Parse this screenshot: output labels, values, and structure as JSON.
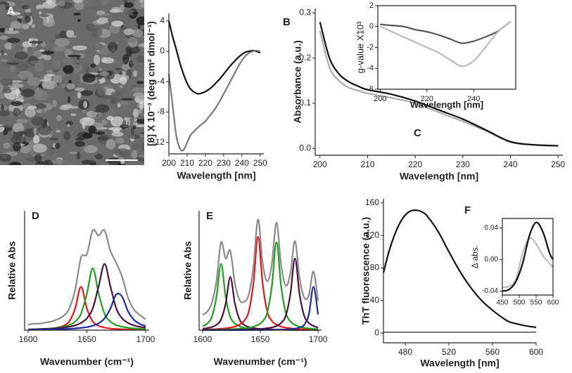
{
  "image_panel": {
    "label": "A"
  },
  "chart_data": [
    {
      "type": "line",
      "label": "B",
      "xlabel": "Wavelength [nm]",
      "ylabel": "[θ] X 10⁻³ (deg cm² dmol⁻¹)",
      "xlim": [
        200,
        252
      ],
      "ylim": [
        -13.5,
        5
      ],
      "xticks": [
        200,
        210,
        220,
        230,
        240,
        250
      ],
      "yticks": [
        4,
        0,
        -4,
        -8,
        -12
      ],
      "x": [
        200,
        202,
        204,
        206,
        208,
        210,
        212,
        214,
        216,
        218,
        220,
        222,
        224,
        226,
        228,
        230,
        232,
        234,
        236,
        238,
        240,
        242,
        244,
        246,
        248,
        250
      ],
      "series": [
        {
          "color": "#111111",
          "values": [
            4,
            2,
            0.3,
            -1.5,
            -3,
            -4.2,
            -5,
            -5.4,
            -5.6,
            -5.5,
            -5.3,
            -5,
            -4.6,
            -4.1,
            -3.6,
            -3,
            -2.4,
            -1.8,
            -1.3,
            -0.8,
            -0.4,
            -0.1,
            0,
            0.1,
            0,
            -0.2
          ]
        },
        {
          "color": "#7a7a7a",
          "values": [
            -3,
            -7,
            -11,
            -12.8,
            -13,
            -12,
            -11,
            -10.5,
            -10,
            -9.6,
            -9.2,
            -8.6,
            -8,
            -7.3,
            -6.5,
            -5.6,
            -4.7,
            -3.8,
            -2.9,
            -2,
            -1.2,
            -0.6,
            -0.2,
            0,
            0.1,
            0
          ]
        }
      ]
    },
    {
      "type": "line",
      "label": "C",
      "xlabel": "Wavelength [nm]",
      "ylabel": "Absorbance (a.u.)",
      "xlim": [
        199,
        251
      ],
      "ylim": [
        -0.015,
        0.31
      ],
      "xticks": [
        200,
        210,
        220,
        230,
        240,
        250
      ],
      "yticks": [
        0.3,
        0.2,
        0.1,
        {
          "value": 0,
          "label": "0.0"
        }
      ],
      "x": [
        200,
        202,
        204,
        206,
        208,
        210,
        215,
        220,
        225,
        230,
        235,
        240,
        245,
        250
      ],
      "series": [
        {
          "color": "#aaaaaa",
          "values": [
            0.26,
            0.18,
            0.15,
            0.135,
            0.128,
            0.122,
            0.112,
            0.1,
            0.08,
            0.06,
            0.038,
            0.014,
            0.008,
            0.006
          ]
        },
        {
          "color": "#111111",
          "values": [
            0.28,
            0.2,
            0.165,
            0.148,
            0.138,
            0.13,
            0.12,
            0.105,
            0.085,
            0.065,
            0.04,
            0.015,
            0.008,
            0.006
          ]
        }
      ]
    },
    {
      "type": "line",
      "xlabel": "Wavelength [nm]",
      "ylabel": "g-value X10³",
      "xlim": [
        199,
        258
      ],
      "ylim": [
        -6,
        2
      ],
      "xticks": [
        200,
        220,
        240
      ],
      "yticks": [
        2,
        0,
        -2,
        -4,
        -6
      ],
      "x": [
        200,
        205,
        210,
        215,
        220,
        225,
        230,
        235,
        240,
        245,
        250,
        253,
        256
      ],
      "series": [
        {
          "color": "#555555",
          "values": [
            0.2,
            0.1,
            0,
            -0.3,
            -0.5,
            -0.8,
            -1.2,
            -1.6,
            -1.4,
            -1,
            -0.5,
            0,
            0.5
          ]
        },
        {
          "color": "#bbbbbb",
          "values": [
            0,
            -0.5,
            -1,
            -1.5,
            -2,
            -2.5,
            -3.2,
            -3.8,
            -3.3,
            -2,
            -0.6,
            0,
            0.5
          ]
        }
      ]
    },
    {
      "type": "line",
      "label": "D",
      "xlabel": "Wavenumber (cm⁻¹)",
      "ylabel": "Relative Abs",
      "xlim": [
        1597,
        1703
      ],
      "ylim": [
        0,
        1.1
      ],
      "xticks": [
        1600,
        1650,
        1700
      ],
      "x": [
        1600,
        1605,
        1610,
        1615,
        1620,
        1625,
        1630,
        1635,
        1640,
        1645,
        1650,
        1655,
        1660,
        1665,
        1670,
        1675,
        1680,
        1685,
        1690,
        1695,
        1700
      ],
      "series": [
        {
          "color": "#e8141a",
          "values": [
            0.005,
            0.006,
            0.008,
            0.011,
            0.015,
            0.024,
            0.04,
            0.08,
            0.2,
            0.4,
            0.2,
            0.08,
            0.04,
            0.024,
            0.015,
            0.011,
            0.008,
            0.006,
            0.005,
            0.004,
            0.003
          ]
        },
        {
          "color": "#1fa01e",
          "values": [
            0.007,
            0.008,
            0.01,
            0.013,
            0.016,
            0.022,
            0.031,
            0.047,
            0.079,
            0.151,
            0.337,
            0.57,
            0.337,
            0.151,
            0.079,
            0.047,
            0.031,
            0.022,
            0.016,
            0.013,
            0.01
          ]
        },
        {
          "color": "#4a0f3c",
          "values": [
            0.007,
            0.008,
            0.01,
            0.012,
            0.014,
            0.018,
            0.023,
            0.031,
            0.044,
            0.067,
            0.109,
            0.2,
            0.404,
            0.61,
            0.404,
            0.2,
            0.109,
            0.067,
            0.044,
            0.031,
            0.023
          ]
        },
        {
          "color": "#1c2a9c",
          "values": [
            0.004,
            0.004,
            0.005,
            0.006,
            0.007,
            0.008,
            0.01,
            0.012,
            0.016,
            0.021,
            0.028,
            0.041,
            0.063,
            0.108,
            0.198,
            0.329,
            0.307,
            0.175,
            0.096,
            0.058,
            0.038
          ]
        },
        {
          "color": "#8a8a8a",
          "values": [
            0.05,
            0.06,
            0.06,
            0.07,
            0.08,
            0.1,
            0.13,
            0.2,
            0.37,
            0.67,
            0.7,
            0.92,
            0.87,
            0.92,
            0.73,
            0.62,
            0.49,
            0.3,
            0.19,
            0.14,
            0.1
          ]
        }
      ]
    },
    {
      "type": "line",
      "label": "E",
      "xlabel": "Wavenumber (cm⁻¹)",
      "ylabel": "Relative Abs",
      "xlim": [
        1597,
        1703
      ],
      "ylim": [
        0,
        1.1
      ],
      "xticks": [
        1600,
        1650,
        1700
      ],
      "x": [
        1600,
        1604,
        1608,
        1612,
        1616,
        1620,
        1624,
        1628,
        1632,
        1636,
        1640,
        1644,
        1648,
        1652,
        1656,
        1660,
        1664,
        1668,
        1672,
        1676,
        1680,
        1684,
        1688,
        1692,
        1696,
        1700
      ],
      "series": [
        {
          "color": "#1fa01e",
          "values": [
            0.036,
            0.061,
            0.122,
            0.305,
            0.61,
            0.305,
            0.122,
            0.061,
            0.036,
            0.023,
            0.016,
            0.012,
            0.009,
            0.007,
            0.006,
            0.005,
            0.004,
            0.004,
            0.003,
            0.003,
            0.002,
            0.002,
            0.002,
            0.002,
            0.002,
            0.001
          ]
        },
        {
          "color": "#4a0f3c",
          "values": [
            0.013,
            0.019,
            0.029,
            0.049,
            0.098,
            0.245,
            0.49,
            0.245,
            0.098,
            0.049,
            0.029,
            0.019,
            0.013,
            0.01,
            0.008,
            0.006,
            0.005,
            0.004,
            0.003,
            0.003,
            0.002,
            0.002,
            0.002,
            0.002,
            0.002,
            0.001
          ]
        },
        {
          "color": "#e8141a",
          "values": [
            0.006,
            0.007,
            0.009,
            0.01,
            0.013,
            0.017,
            0.023,
            0.033,
            0.051,
            0.086,
            0.172,
            0.43,
            0.86,
            0.43,
            0.172,
            0.086,
            0.051,
            0.033,
            0.023,
            0.017,
            0.013,
            0.01,
            0.009,
            0.007,
            0.006,
            0.005
          ]
        },
        {
          "color": "#1fa01e",
          "values": [
            0.003,
            0.004,
            0.004,
            0.005,
            0.006,
            0.007,
            0.008,
            0.01,
            0.012,
            0.016,
            0.022,
            0.031,
            0.048,
            0.081,
            0.162,
            0.405,
            0.81,
            0.405,
            0.162,
            0.081,
            0.048,
            0.031,
            0.022,
            0.016,
            0.012,
            0.01
          ]
        },
        {
          "color": "#4a0f3c",
          "values": [
            0.002,
            0.002,
            0.002,
            0.002,
            0.003,
            0.003,
            0.003,
            0.004,
            0.005,
            0.005,
            0.007,
            0.008,
            0.01,
            0.013,
            0.018,
            0.025,
            0.039,
            0.066,
            0.132,
            0.33,
            0.66,
            0.33,
            0.132,
            0.066,
            0.039,
            0.025
          ]
        },
        {
          "color": "#1c2a9c",
          "values": [
            0.0004,
            0.0004,
            0.0005,
            0.0005,
            0.0006,
            0.0006,
            0.0007,
            0.0008,
            0.0009,
            0.001,
            0.0012,
            0.0013,
            0.0016,
            0.0018,
            0.0022,
            0.0028,
            0.0035,
            0.0046,
            0.0062,
            0.0088,
            0.0136,
            0.024,
            0.049,
            0.144,
            0.4,
            0.144
          ]
        },
        {
          "color": "#8a8a8a",
          "values": [
            0.14,
            0.17,
            0.25,
            0.45,
            0.81,
            0.66,
            0.73,
            0.43,
            0.28,
            0.26,
            0.33,
            0.58,
            1.02,
            0.62,
            0.45,
            0.61,
            0.99,
            0.6,
            0.41,
            0.52,
            0.82,
            0.48,
            0.3,
            0.32,
            0.54,
            0.27
          ]
        }
      ]
    },
    {
      "type": "line",
      "label": "F",
      "xlabel": "Wavelength [nm]",
      "ylabel": "ThT fluorescence (a.u.)",
      "xlim": [
        460,
        600
      ],
      "ylim": [
        -12,
        165
      ],
      "xticks": [
        480,
        520,
        560,
        600
      ],
      "yticks": [
        0,
        40,
        80,
        120,
        160
      ],
      "x": [
        460,
        465,
        470,
        475,
        480,
        485,
        490,
        495,
        500,
        510,
        520,
        530,
        540,
        550,
        560,
        570,
        575,
        580,
        590,
        600
      ],
      "series": [
        {
          "color": "#111111",
          "values": [
            74,
            100,
            120,
            135,
            145,
            150,
            151,
            149,
            144,
            125,
            100,
            76,
            56,
            40,
            28,
            18,
            14,
            12,
            9,
            7
          ]
        },
        {
          "color": "#7a7a7a",
          "values": [
            1,
            1,
            1,
            1,
            1,
            1,
            1,
            1,
            1,
            1,
            1,
            1,
            1,
            1,
            1,
            1,
            1,
            1,
            1,
            1
          ]
        }
      ]
    },
    {
      "type": "line",
      "ylabel": "Δ abs.",
      "xlim": [
        450,
        600
      ],
      "ylim": [
        -0.045,
        0.052
      ],
      "xticks": [
        450,
        500,
        550,
        600
      ],
      "yticks": [
        0.04,
        {
          "value": 0,
          "label": "0.00"
        },
        -0.04
      ],
      "x": [
        450,
        470,
        490,
        510,
        530,
        550,
        570,
        590,
        600
      ],
      "series": [
        {
          "color": "#bbbbbb",
          "values": [
            -0.035,
            -0.034,
            -0.025,
            0.008,
            0.027,
            0.02,
            0.005,
            -0.005,
            -0.01
          ]
        },
        {
          "color": "#111111",
          "values": [
            -0.04,
            -0.038,
            -0.028,
            -0.005,
            0.03,
            0.047,
            0.035,
            0.008,
            0
          ]
        }
      ]
    }
  ]
}
